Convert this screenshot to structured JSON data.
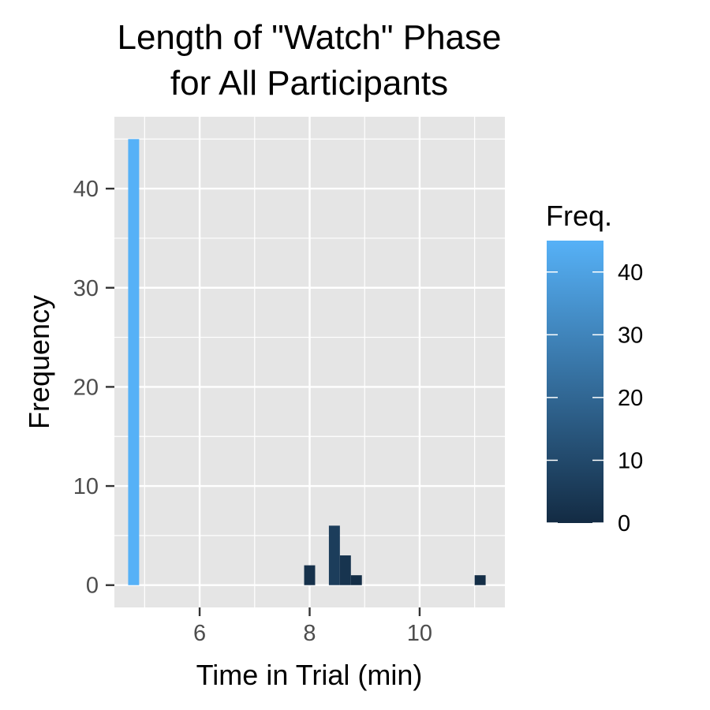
{
  "chart_data": {
    "type": "bar",
    "title_lines": [
      "Length of \"Watch\" Phase",
      "for All Participants"
    ],
    "xlabel": "Time in Trial (min)",
    "ylabel": "Frequency",
    "xlim": [
      4.45,
      11.55
    ],
    "ylim": [
      -2.25,
      47.25
    ],
    "x_ticks": [
      6,
      8,
      10
    ],
    "x_tick_labels": [
      "6",
      "8",
      "10"
    ],
    "y_ticks": [
      0,
      10,
      20,
      30,
      40
    ],
    "y_tick_labels": [
      "0",
      "10",
      "20",
      "30",
      "40"
    ],
    "bin_width": 0.2,
    "bins": [
      {
        "x": 4.8,
        "count": 45
      },
      {
        "x": 8.0,
        "count": 2
      },
      {
        "x": 8.45,
        "count": 6
      },
      {
        "x": 8.65,
        "count": 3
      },
      {
        "x": 8.85,
        "count": 1
      },
      {
        "x": 11.1,
        "count": 1
      }
    ],
    "grid": true,
    "panel_background": "#e5e5e5",
    "gridline_color": "#ffffff",
    "legend": {
      "title": "Freq.",
      "position": "right",
      "type": "colorbar",
      "range": [
        0,
        45
      ],
      "ticks": [
        0,
        10,
        20,
        30,
        40
      ],
      "tick_labels": [
        "0",
        "10",
        "20",
        "30",
        "40"
      ],
      "low_color": "#132b43",
      "high_color": "#56b1f7"
    }
  }
}
